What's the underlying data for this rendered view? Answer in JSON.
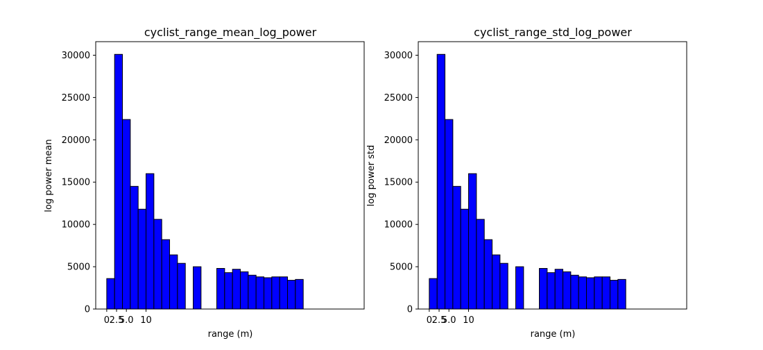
{
  "colors": {
    "bar_fill": "#0000ff",
    "bar_edge": "#000000",
    "axis": "#000000",
    "background": "#ffffff"
  },
  "chart_data": [
    {
      "type": "bar",
      "title": "cyclist_range_mean_log_power",
      "xlabel": "range (m)",
      "ylabel": "log power mean",
      "ylim": [
        0,
        31600
      ],
      "xlim": [
        -2.8,
        65.5
      ],
      "yticks": [
        "0",
        "5000",
        "10000",
        "15000",
        "20000",
        "25000",
        "30000"
      ],
      "xticks": [
        "0",
        "2.5",
        "5.0",
        "10"
      ],
      "grid": false,
      "legend": "none",
      "bin_width": 2,
      "bars": [
        {
          "x0": 0,
          "value": 3600
        },
        {
          "x0": 2,
          "value": 30100
        },
        {
          "x0": 4,
          "value": 22400
        },
        {
          "x0": 6,
          "value": 14500
        },
        {
          "x0": 8,
          "value": 11800
        },
        {
          "x0": 10,
          "value": 16000
        },
        {
          "x0": 12,
          "value": 10600
        },
        {
          "x0": 14,
          "value": 8200
        },
        {
          "x0": 16,
          "value": 6400
        },
        {
          "x0": 18,
          "value": 5400
        },
        {
          "x0": 20,
          "value": 0
        },
        {
          "x0": 22,
          "value": 5000
        },
        {
          "x0": 24,
          "value": 0
        },
        {
          "x0": 26,
          "value": 0
        },
        {
          "x0": 28,
          "value": 4800
        },
        {
          "x0": 30,
          "value": 4300
        },
        {
          "x0": 32,
          "value": 4700
        },
        {
          "x0": 34,
          "value": 4400
        },
        {
          "x0": 36,
          "value": 4000
        },
        {
          "x0": 38,
          "value": 3800
        },
        {
          "x0": 40,
          "value": 3700
        },
        {
          "x0": 42,
          "value": 3800
        },
        {
          "x0": 44,
          "value": 3800
        },
        {
          "x0": 46,
          "value": 3400
        },
        {
          "x0": 48,
          "value": 3500
        },
        {
          "x0": 50,
          "value": 0
        },
        {
          "x0": 52,
          "value": 0
        },
        {
          "x0": 54,
          "value": 0
        },
        {
          "x0": 56,
          "value": 0
        },
        {
          "x0": 58,
          "value": 0
        },
        {
          "x0": 60,
          "value": 0
        }
      ]
    },
    {
      "type": "bar",
      "title": "cyclist_range_std_log_power",
      "xlabel": "range (m)",
      "ylabel": "log power std",
      "ylim": [
        0,
        31600
      ],
      "xlim": [
        -2.8,
        65.5
      ],
      "yticks": [
        "0",
        "5000",
        "10000",
        "15000",
        "20000",
        "25000",
        "30000"
      ],
      "xticks": [
        "0",
        "2.5",
        "5.0",
        "10"
      ],
      "grid": false,
      "legend": "none",
      "bin_width": 2,
      "bars": [
        {
          "x0": 0,
          "value": 3600
        },
        {
          "x0": 2,
          "value": 30100
        },
        {
          "x0": 4,
          "value": 22400
        },
        {
          "x0": 6,
          "value": 14500
        },
        {
          "x0": 8,
          "value": 11800
        },
        {
          "x0": 10,
          "value": 16000
        },
        {
          "x0": 12,
          "value": 10600
        },
        {
          "x0": 14,
          "value": 8200
        },
        {
          "x0": 16,
          "value": 6400
        },
        {
          "x0": 18,
          "value": 5400
        },
        {
          "x0": 20,
          "value": 0
        },
        {
          "x0": 22,
          "value": 5000
        },
        {
          "x0": 24,
          "value": 0
        },
        {
          "x0": 26,
          "value": 0
        },
        {
          "x0": 28,
          "value": 4800
        },
        {
          "x0": 30,
          "value": 4300
        },
        {
          "x0": 32,
          "value": 4700
        },
        {
          "x0": 34,
          "value": 4400
        },
        {
          "x0": 36,
          "value": 4000
        },
        {
          "x0": 38,
          "value": 3800
        },
        {
          "x0": 40,
          "value": 3700
        },
        {
          "x0": 42,
          "value": 3800
        },
        {
          "x0": 44,
          "value": 3800
        },
        {
          "x0": 46,
          "value": 3400
        },
        {
          "x0": 48,
          "value": 3500
        },
        {
          "x0": 50,
          "value": 0
        },
        {
          "x0": 52,
          "value": 0
        },
        {
          "x0": 54,
          "value": 0
        },
        {
          "x0": 56,
          "value": 0
        },
        {
          "x0": 58,
          "value": 0
        },
        {
          "x0": 60,
          "value": 0
        }
      ]
    }
  ]
}
